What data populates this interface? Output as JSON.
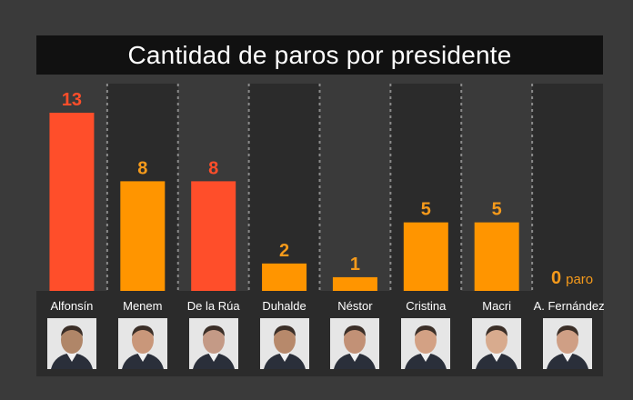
{
  "colors": {
    "background": "#3a3a3a",
    "title_bg": "#111111",
    "panel_bg": "#2b2b2b",
    "bar_red": "#ff4e2a",
    "bar_orange": "#ff9500",
    "label_red": "#ff4e2a",
    "label_orange": "#f59a1b"
  },
  "chart_data": {
    "type": "bar",
    "title": "Cantidad de paros por presidente",
    "xlabel": "",
    "ylabel": "",
    "categories": [
      "Alfonsín",
      "Menem",
      "De la Rúa",
      "Duhalde",
      "Néstor",
      "Cristina",
      "Macri",
      "A. Fernández"
    ],
    "values": [
      13,
      8,
      8,
      2,
      1,
      5,
      5,
      0
    ],
    "value_labels": [
      "13",
      "8",
      "8",
      "2",
      "1",
      "5",
      "5",
      "0"
    ],
    "value_suffixes": [
      "",
      "",
      "",
      "",
      "",
      "",
      "",
      "paro"
    ],
    "bar_colors": [
      "red",
      "orange",
      "red",
      "orange",
      "orange",
      "orange",
      "orange",
      "orange"
    ],
    "ylim": [
      0,
      13
    ],
    "grid": false,
    "legend": "none"
  },
  "portraits": [
    {
      "icon": "portrait-photo-icon",
      "tone": "#b08668"
    },
    {
      "icon": "portrait-photo-icon",
      "tone": "#c9977a"
    },
    {
      "icon": "portrait-photo-icon",
      "tone": "#c49a86"
    },
    {
      "icon": "portrait-photo-icon",
      "tone": "#b7896b"
    },
    {
      "icon": "portrait-photo-icon",
      "tone": "#c29176"
    },
    {
      "icon": "portrait-photo-icon",
      "tone": "#d3a184"
    },
    {
      "icon": "portrait-photo-icon",
      "tone": "#d8ab8e"
    },
    {
      "icon": "portrait-photo-icon",
      "tone": "#cf9f85"
    }
  ]
}
